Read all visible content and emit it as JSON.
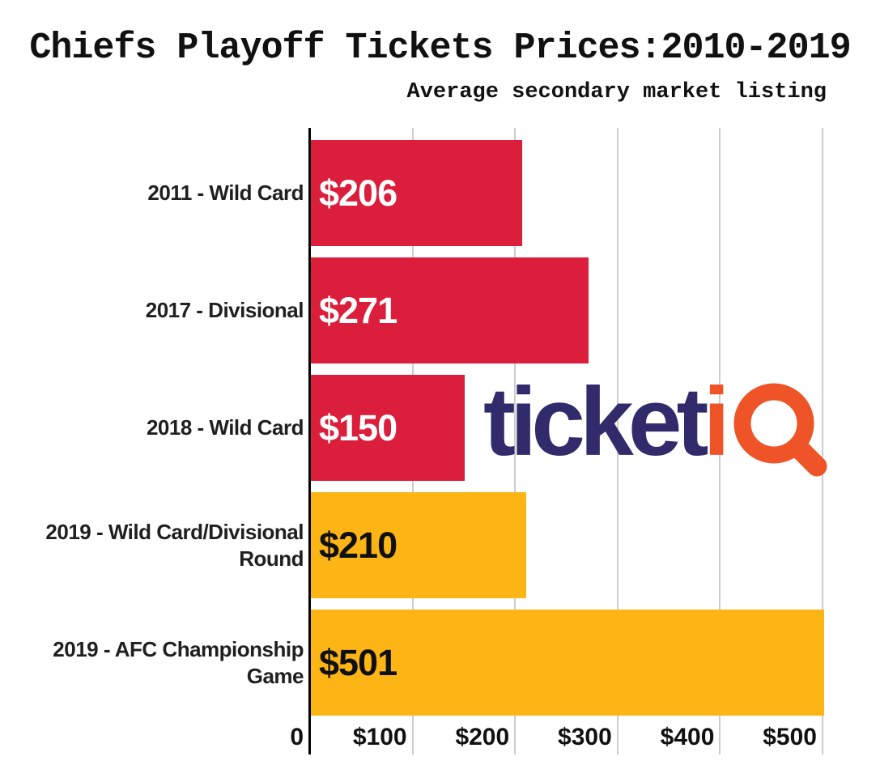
{
  "title": "Chiefs Playoff Tickets Prices:2010-2019",
  "subtitle": "Average secondary market listing",
  "logo": {
    "ticket_text": "ticket",
    "i_text": "i",
    "q_icon": "magnifier-q-icon",
    "navy": "#312B6B",
    "orange": "#EE5427"
  },
  "colors": {
    "bar_red": "#DB1E3C",
    "bar_yellow": "#FDB515",
    "axis": "#000000",
    "gridline": "#CCCCCC",
    "text_dark": "#1F1F1F"
  },
  "chart_data": {
    "type": "bar",
    "orientation": "horizontal",
    "title": "Chiefs Playoff Tickets Prices:2010-2019",
    "subtitle": "Average secondary market listing",
    "categories": [
      [
        "2011 - Wild Card"
      ],
      [
        "2017 - Divisional"
      ],
      [
        "2018 - Wild Card"
      ],
      [
        "2019 - Wild Card/Divisional",
        "Round"
      ],
      [
        "2019 - AFC Championship",
        "Game"
      ]
    ],
    "values": [
      206,
      271,
      150,
      210,
      501
    ],
    "value_labels": [
      "$206",
      "$271",
      "$150",
      "$210",
      "$501"
    ],
    "bar_colors": [
      "#DB1E3C",
      "#DB1E3C",
      "#DB1E3C",
      "#FDB515",
      "#FDB515"
    ],
    "value_label_colors": [
      "#FFFFFF",
      "#FFFFFF",
      "#FFFFFF",
      "#101010",
      "#101010"
    ],
    "x_ticks": [
      {
        "label": "0",
        "value": 0
      },
      {
        "label": "$100",
        "value": 100
      },
      {
        "label": "$200",
        "value": 200
      },
      {
        "label": "$300",
        "value": 300
      },
      {
        "label": "$400",
        "value": 400
      },
      {
        "label": "$500",
        "value": 500
      }
    ],
    "xlim": [
      0,
      535
    ],
    "grid": true,
    "legend": false,
    "xlabel": "",
    "ylabel": ""
  }
}
